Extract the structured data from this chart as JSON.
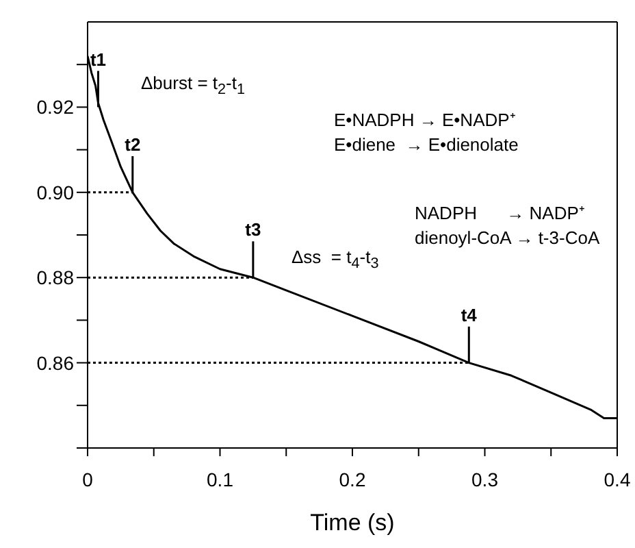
{
  "chart_data": {
    "type": "line",
    "xlabel": "Time (s)",
    "x": [
      0,
      0.003,
      0.006,
      0.008,
      0.012,
      0.018,
      0.025,
      0.034,
      0.045,
      0.055,
      0.065,
      0.08,
      0.1,
      0.125,
      0.15,
      0.2,
      0.25,
      0.288,
      0.32,
      0.35,
      0.38,
      0.39,
      0.4
    ],
    "series": [
      {
        "color": "#000000",
        "values": [
          0.932,
          0.928,
          0.925,
          0.921,
          0.917,
          0.912,
          0.906,
          0.9,
          0.895,
          0.891,
          0.888,
          0.885,
          0.882,
          0.88,
          0.877,
          0.871,
          0.865,
          0.86,
          0.857,
          0.853,
          0.849,
          0.847,
          0.847
        ]
      },
      {
        "type": "line",
        "color": "#000000",
        "line_style": "dotted",
        "x": [
          0,
          0.034
        ],
        "values": [
          0.9,
          0.9
        ]
      },
      {
        "type": "line",
        "color": "#000000",
        "line_style": "dotted",
        "x": [
          0,
          0.125
        ],
        "values": [
          0.88,
          0.88
        ]
      },
      {
        "type": "line",
        "color": "#000000",
        "line_style": "dotted",
        "x": [
          0,
          0.288
        ],
        "values": [
          0.86,
          0.86
        ]
      }
    ],
    "xlim": [
      0,
      0.4
    ],
    "xticks": [
      0,
      {
        "value": 0.05,
        "label": null
      },
      0.1,
      {
        "value": 0.15,
        "label": null
      },
      0.2,
      {
        "value": 0.25,
        "label": null
      },
      0.3,
      {
        "value": 0.35,
        "label": null
      },
      0.4
    ],
    "ylim": [
      0.84,
      0.94
    ],
    "yticks": [
      {
        "value": 0.84,
        "label": null
      },
      {
        "value": 0.85,
        "label": null
      },
      {
        "value": 0.86,
        "label": "0.86"
      },
      {
        "value": 0.87,
        "label": null
      },
      {
        "value": 0.88,
        "label": "0.88"
      },
      {
        "value": 0.89,
        "label": null
      },
      {
        "value": 0.9,
        "label": "0.90"
      },
      {
        "value": 0.91,
        "label": null
      },
      {
        "value": 0.92,
        "label": "0.92"
      },
      {
        "value": 0.93,
        "label": null
      }
    ],
    "annotations": [
      {
        "text": "t1",
        "x": 0.008,
        "y": 0.92
      },
      {
        "text": "t2",
        "x": 0.034,
        "y": 0.9
      },
      {
        "text": "t3",
        "x": 0.125,
        "y": 0.88
      },
      {
        "text": "t4",
        "x": 0.288,
        "y": 0.86
      },
      "Δburst = t$_{2}$-t$_{1}$",
      "E•NADPH → E•NADP⁺",
      "E•diene  → E•dienolate",
      "NADPH      → NADP⁺",
      "dienoyl-CoA → t-3-CoA",
      "Δss  = t$_{4}$-t$_{3}$"
    ],
    "line_style": "solid"
  }
}
